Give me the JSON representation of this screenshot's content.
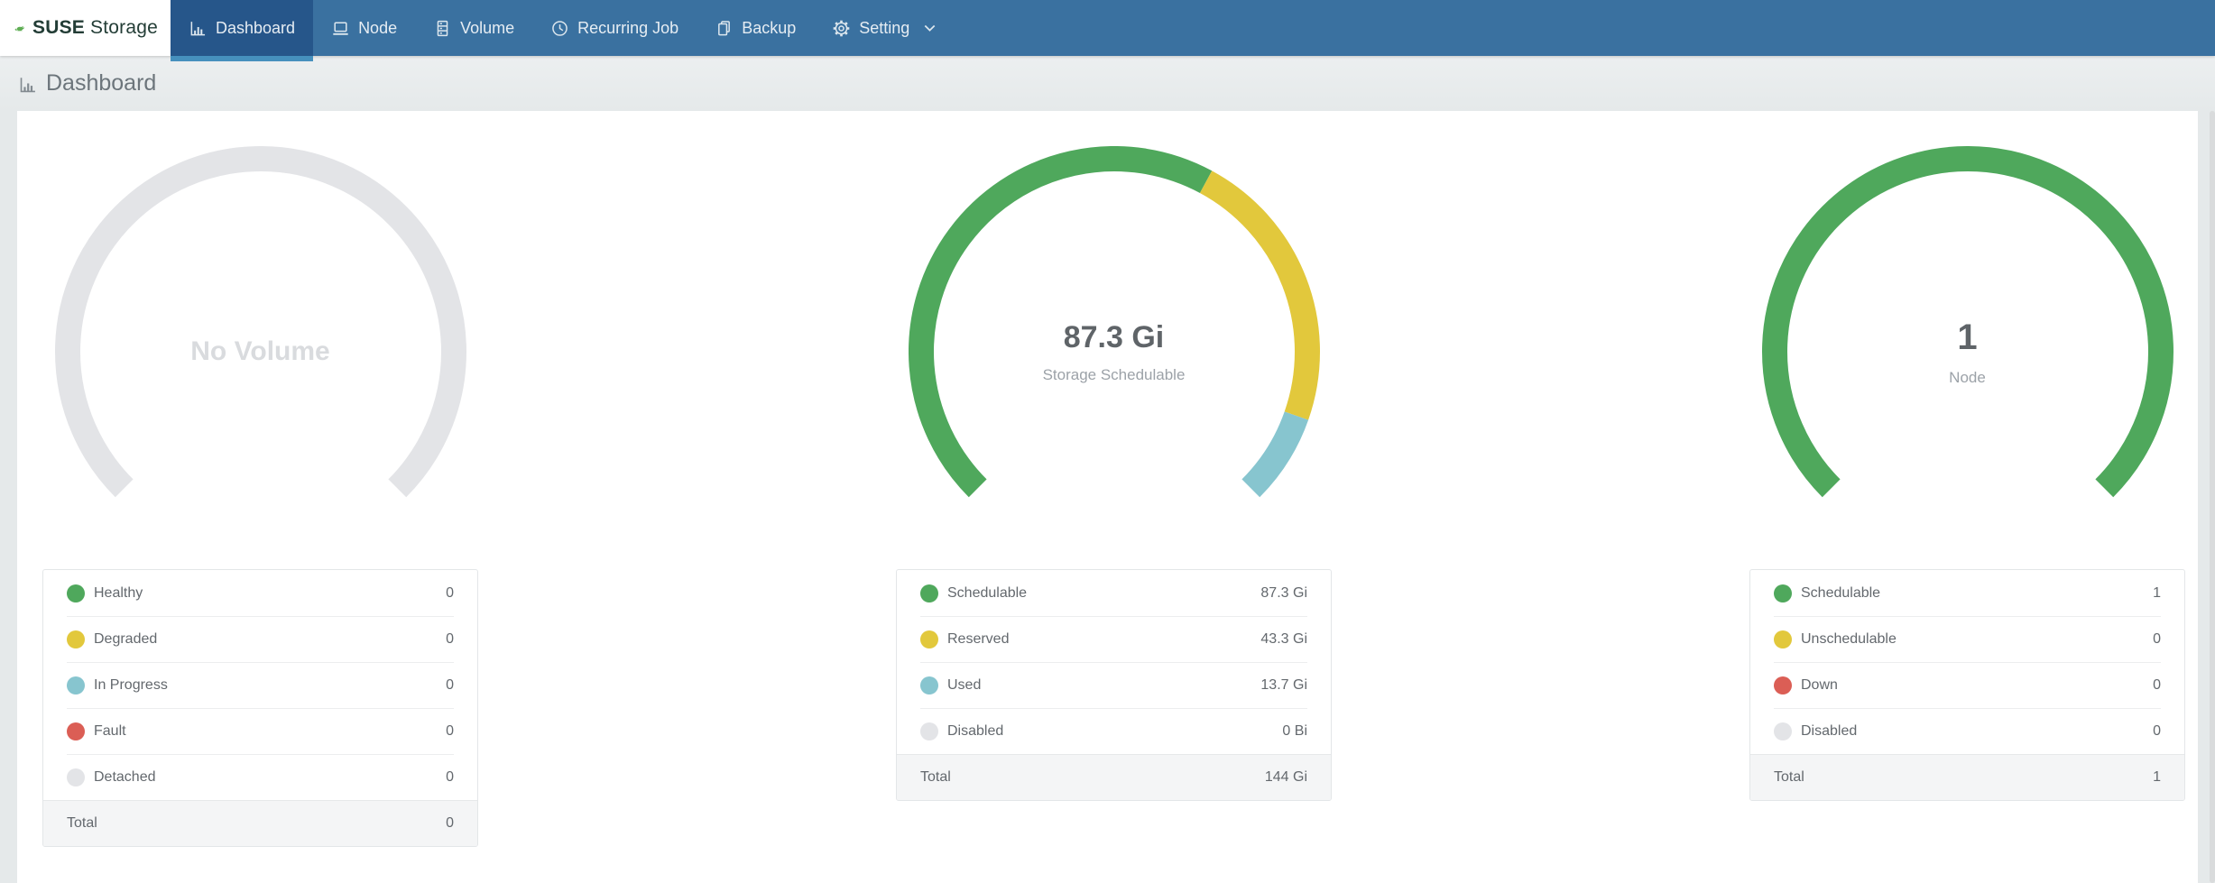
{
  "brand": {
    "product_bold": "SUSE",
    "product_regular": "Storage"
  },
  "nav": {
    "items": [
      {
        "label": "Dashboard",
        "icon": "bar-chart-icon",
        "active": true
      },
      {
        "label": "Node",
        "icon": "laptop-icon",
        "active": false
      },
      {
        "label": "Volume",
        "icon": "server-icon",
        "active": false
      },
      {
        "label": "Recurring Job",
        "icon": "clock-icon",
        "active": false
      },
      {
        "label": "Backup",
        "icon": "copy-icon",
        "active": false
      },
      {
        "label": "Setting",
        "icon": "gear-icon",
        "active": false,
        "has_dropdown": true
      }
    ]
  },
  "header": {
    "title": "Dashboard"
  },
  "colors": {
    "navbar": "#3A71A0",
    "navbar_active": "#26568A",
    "navbar_active_underline": "#4690BD",
    "green": "#4FA85C",
    "yellow": "#E2C83C",
    "blue": "#87C5CF",
    "red": "#DB5E55",
    "gray": "#E3E4E7"
  },
  "chart_data": [
    {
      "type": "gauge",
      "arc_span_deg": 270,
      "center_value": "",
      "center_label": "No Volume",
      "segments": [
        {
          "name": "no-volume",
          "value": 1,
          "color": "#E3E4E7"
        }
      ],
      "legend": {
        "rows": [
          {
            "label": "Healthy",
            "value": "0",
            "color": "#4FA85C"
          },
          {
            "label": "Degraded",
            "value": "0",
            "color": "#E2C83C"
          },
          {
            "label": "In Progress",
            "value": "0",
            "color": "#87C5CF"
          },
          {
            "label": "Fault",
            "value": "0",
            "color": "#DB5E55"
          },
          {
            "label": "Detached",
            "value": "0",
            "color": "#E3E4E7"
          }
        ],
        "total_label": "Total",
        "total_value": "0"
      }
    },
    {
      "type": "gauge",
      "arc_span_deg": 270,
      "center_value": "87.3 Gi",
      "center_label": "Storage Schedulable",
      "segments": [
        {
          "name": "schedulable",
          "value": 87.3,
          "color": "#4FA85C"
        },
        {
          "name": "reserved",
          "value": 43.3,
          "color": "#E2C83C"
        },
        {
          "name": "used",
          "value": 13.7,
          "color": "#87C5CF"
        }
      ],
      "legend": {
        "rows": [
          {
            "label": "Schedulable",
            "value": "87.3 Gi",
            "color": "#4FA85C"
          },
          {
            "label": "Reserved",
            "value": "43.3 Gi",
            "color": "#E2C83C"
          },
          {
            "label": "Used",
            "value": "13.7 Gi",
            "color": "#87C5CF"
          },
          {
            "label": "Disabled",
            "value": "0 Bi",
            "color": "#E3E4E7"
          }
        ],
        "total_label": "Total",
        "total_value": "144 Gi"
      }
    },
    {
      "type": "gauge",
      "arc_span_deg": 270,
      "center_value": "1",
      "center_label": "Node",
      "segments": [
        {
          "name": "schedulable",
          "value": 1,
          "color": "#4FA85C"
        }
      ],
      "legend": {
        "rows": [
          {
            "label": "Schedulable",
            "value": "1",
            "color": "#4FA85C"
          },
          {
            "label": "Unschedulable",
            "value": "0",
            "color": "#E2C83C"
          },
          {
            "label": "Down",
            "value": "0",
            "color": "#DB5E55"
          },
          {
            "label": "Disabled",
            "value": "0",
            "color": "#E3E4E7"
          }
        ],
        "total_label": "Total",
        "total_value": "1"
      }
    }
  ]
}
